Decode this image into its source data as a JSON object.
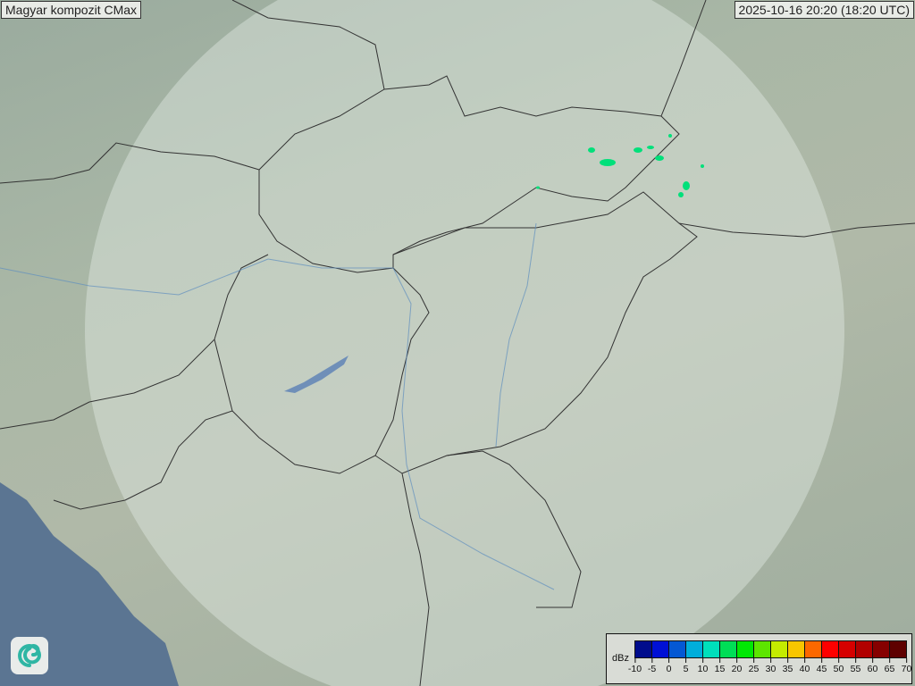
{
  "header": {
    "title": "Magyar kompozit  CMax",
    "timestamp": "2025-10-16 20:20 (18:20 UTC)"
  },
  "legend": {
    "unit": "dBz",
    "ticks": [
      "-10",
      "-5",
      "0",
      "5",
      "10",
      "15",
      "20",
      "25",
      "30",
      "35",
      "40",
      "45",
      "50",
      "55",
      "60",
      "65",
      "70"
    ],
    "colors": [
      "#000c8c",
      "#0010d6",
      "#0458d4",
      "#00aedb",
      "#00dfbb",
      "#00de56",
      "#00e804",
      "#5de500",
      "#c4ec00",
      "#f8c600",
      "#fc6800",
      "#fe0000",
      "#d60000",
      "#b10000",
      "#860000",
      "#5e0000"
    ]
  },
  "logo": {
    "icon": "swirl-logo-icon"
  },
  "map": {
    "sea_color": "#5b7592",
    "coverage_color": "#dfe8e2",
    "echo_color": "#00e07a"
  }
}
